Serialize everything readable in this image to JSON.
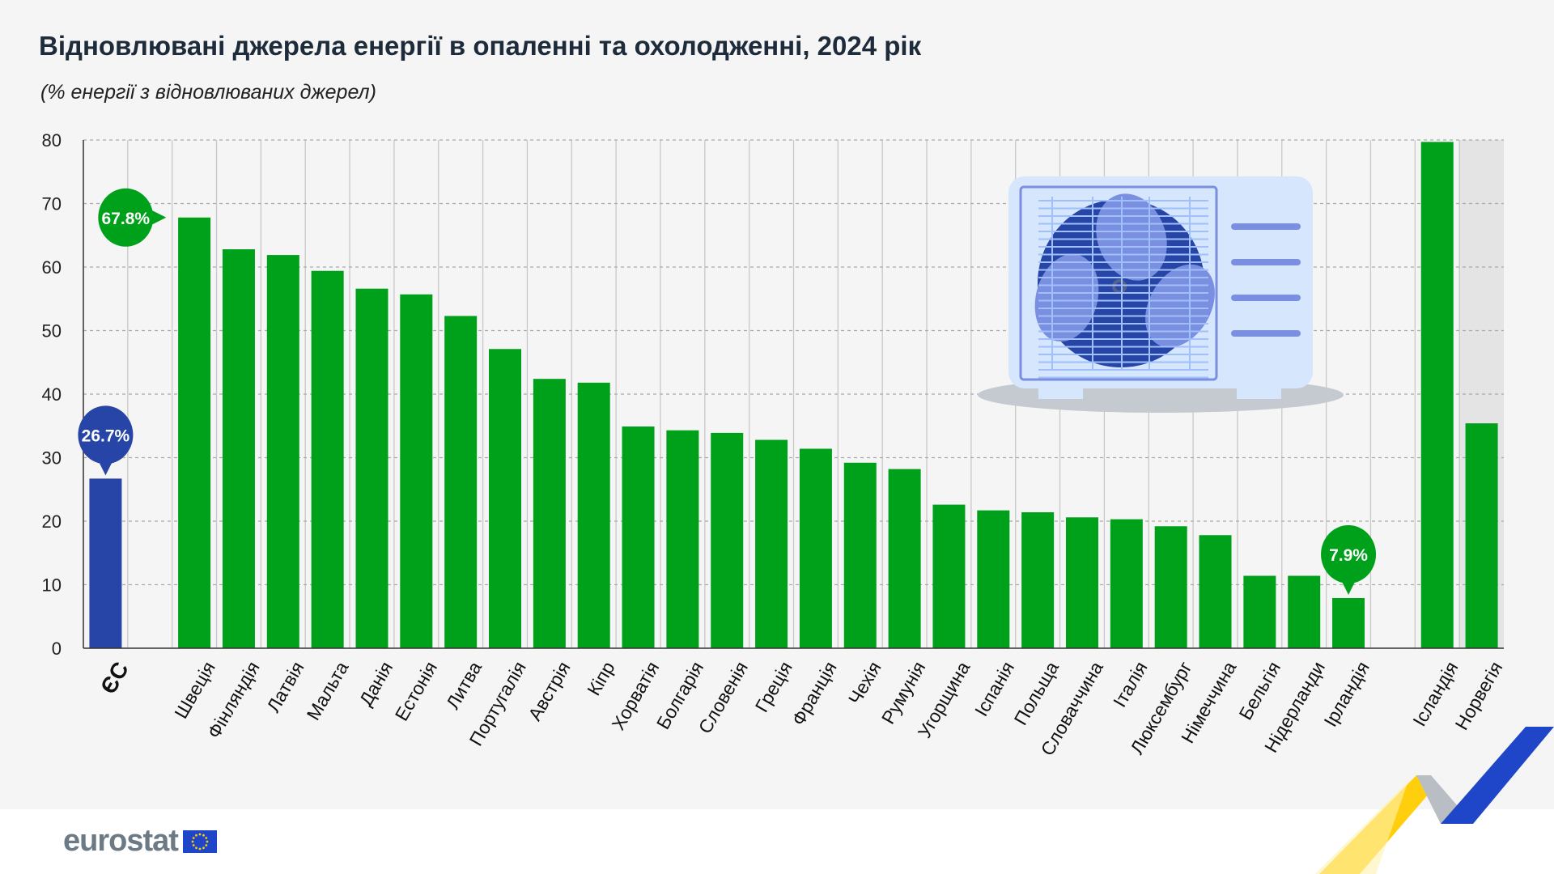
{
  "title": "Відновлювані джерела енергії в опаленні та охолодженні, 2024 рік",
  "subtitle": "(% енергії з відновлюваних джерел)",
  "logo": {
    "text": "eurostat",
    "flag": "eu-flag-icon"
  },
  "colors": {
    "eu": "#2745a6",
    "country": "#00a11a",
    "background": "#f5f5f5",
    "highlight_column": "#e4e4e4"
  },
  "illustration": "heat-pump-outdoor-unit-icon",
  "chart_data": {
    "type": "bar",
    "title": "Відновлювані джерела енергії в опаленні та охолодженні, 2024 рік",
    "ylabel": "(% енергії з відновлюваних джерел)",
    "ylim": [
      0,
      80
    ],
    "yticks": [
      0,
      10,
      20,
      30,
      40,
      50,
      60,
      70,
      80
    ],
    "grid": true,
    "groups": [
      {
        "categories": [
          "ЄС"
        ],
        "values": [
          26.7
        ],
        "color": "#2745a6"
      },
      {
        "categories": [
          "Швеція",
          "Фінляндія",
          "Латвія",
          "Мальта",
          "Данія",
          "Естонія",
          "Литва",
          "Португалія",
          "Австрія",
          "Кіпр",
          "Хорватія",
          "Болгарія",
          "Словенія",
          "Греція",
          "Франція",
          "Чехія",
          "Румунія",
          "Угорщина",
          "Іспанія",
          "Польща",
          "Словаччина",
          "Італія",
          "Люксембург",
          "Німеччина",
          "Бельгія",
          "Нідерланди",
          "Ірландія"
        ],
        "values": [
          67.8,
          62.8,
          61.9,
          59.4,
          56.6,
          55.7,
          52.3,
          47.1,
          42.4,
          41.8,
          34.9,
          34.3,
          33.9,
          32.8,
          31.4,
          29.2,
          28.2,
          22.6,
          21.7,
          21.4,
          20.6,
          20.3,
          19.2,
          17.8,
          11.4,
          11.4,
          7.9
        ],
        "color": "#00a11a"
      },
      {
        "categories": [
          "Ісландія",
          "Норвегія"
        ],
        "values": [
          79.7,
          35.4
        ],
        "color": "#00a11a"
      }
    ],
    "annotations": [
      {
        "category": "ЄС",
        "label": "26.7%"
      },
      {
        "category": "Швеція",
        "label": "67.8%"
      },
      {
        "category": "Ірландія",
        "label": "7.9%"
      }
    ]
  }
}
